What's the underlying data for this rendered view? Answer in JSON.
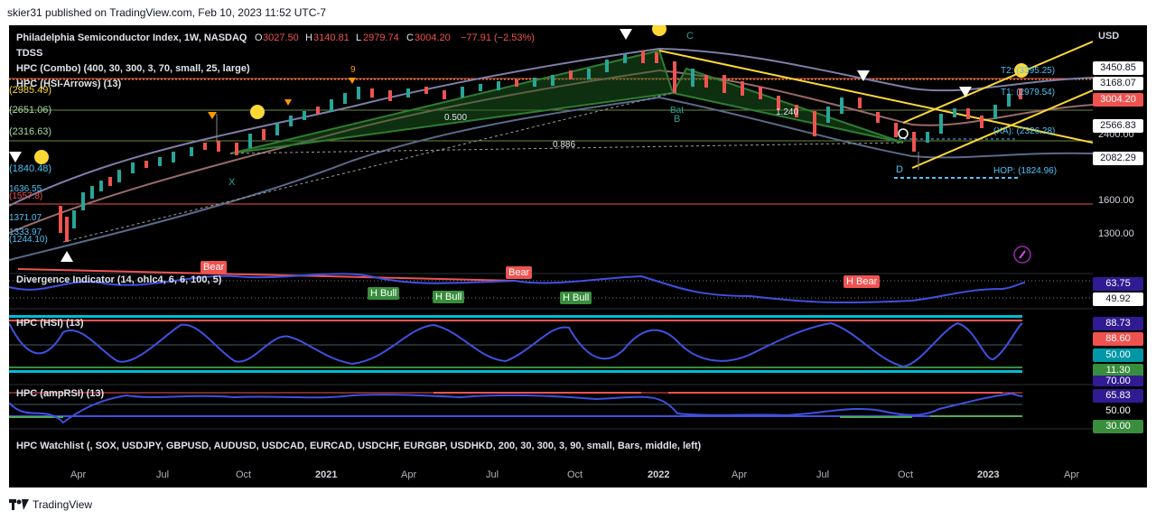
{
  "header": {
    "publish_line": "skier31 published on TradingView.com, Feb 10, 2023 11:52 UTC-7"
  },
  "symbol": {
    "name": "Philadelphia Semiconductor Index, 1W, NASDAQ",
    "open_label": "O",
    "open": "3027.50",
    "high_label": "H",
    "high": "3140.81",
    "low_label": "L",
    "low": "2979.74",
    "close_label": "C",
    "close": "3004.20",
    "change": "−77.91 (−2.53%)"
  },
  "indicators": {
    "tdss": "TDSS",
    "combo": "HPC (Combo) (400, 30, 300, 3, 70, small, 25, large)",
    "arrows": "HPC (HSI-Arrows) (13)",
    "divergence": "Divergence Indicator (14, ohlc4, 6, 6, 100, 5)",
    "hsi": "HPC (HSI) (13)",
    "amprsi": "HPC (ampRSI) (13)",
    "watchlist": "HPC Watchlist (, SOX, USDJPY, GBPUSD, AUDUSD, USDCAD, EURCAD, USDCHF, EURGBP, USDHKD, 200, 30, 300, 3, 90, small, Bars, middle, left)"
  },
  "price_scale": {
    "currency": "USD",
    "ticks": [
      "2400.00",
      "1600.00",
      "1300.00"
    ],
    "tags": [
      {
        "value": "3450.85",
        "bg": "#ffffff",
        "fg": "#131722"
      },
      {
        "value": "3168.07",
        "bg": "#ffffff",
        "fg": "#131722"
      },
      {
        "value": "3004.20",
        "bg": "#ef5350",
        "fg": "#ffffff"
      },
      {
        "value": "2566.83",
        "bg": "#ffffff",
        "fg": "#131722"
      },
      {
        "value": "2082.29",
        "bg": "#ffffff",
        "fg": "#131722"
      }
    ]
  },
  "left_levels": [
    "(2985.49)",
    "(2651.06)",
    "(2316.63)",
    "(1840.48)",
    "1636.55",
    "(1557.8)",
    "1371.07",
    "1333.97",
    "(1244.10)"
  ],
  "pattern_labels": {
    "t2": "T2: (3395.25)",
    "t1": "T1: (2979.54)",
    "xa": "(XA): (2326.28)",
    "hop": "HOP: (1824.96)",
    "fib_0500": "0.500",
    "fib_0886": "0.886",
    "fib_1240": "1.240",
    "c": "C",
    "b": "B",
    "x": "X",
    "d": "D",
    "bat": "Bat",
    "nine": "9"
  },
  "divergence": {
    "value1": "63.75",
    "value2": "49.92",
    "labels": [
      {
        "text": "Bear",
        "type": "bear"
      },
      {
        "text": "H Bull",
        "type": "bull"
      },
      {
        "text": "H Bull",
        "type": "bull"
      },
      {
        "text": "Bear",
        "type": "bear"
      },
      {
        "text": "H Bull",
        "type": "bull"
      },
      {
        "text": "H Bear",
        "type": "bear"
      }
    ]
  },
  "hsi": {
    "values": [
      {
        "value": "88.73",
        "bg": "#311b92",
        "fg": "#ffffff"
      },
      {
        "value": "88.60",
        "bg": "#ef5350",
        "fg": "#ffffff"
      },
      {
        "value": "50.00",
        "bg": "#0097a7",
        "fg": "#ffffff"
      },
      {
        "value": "11.30",
        "bg": "#388e3c",
        "fg": "#ffffff"
      }
    ]
  },
  "amprsi": {
    "values": [
      {
        "value": "70.00",
        "bg": "#311b92",
        "fg": "#ffffff"
      },
      {
        "value": "65.83",
        "bg": "#311b92",
        "fg": "#ffffff"
      },
      {
        "value": "50.00",
        "bg": "#000000",
        "fg": "#ffffff"
      },
      {
        "value": "30.00",
        "bg": "#388e3c",
        "fg": "#ffffff"
      }
    ]
  },
  "time_axis": [
    "Apr",
    "Jul",
    "Oct",
    "2021",
    "Apr",
    "Jul",
    "Oct",
    "2022",
    "Apr",
    "Jul",
    "Oct",
    "2023",
    "Apr"
  ],
  "footer": {
    "brand": "TradingView"
  }
}
